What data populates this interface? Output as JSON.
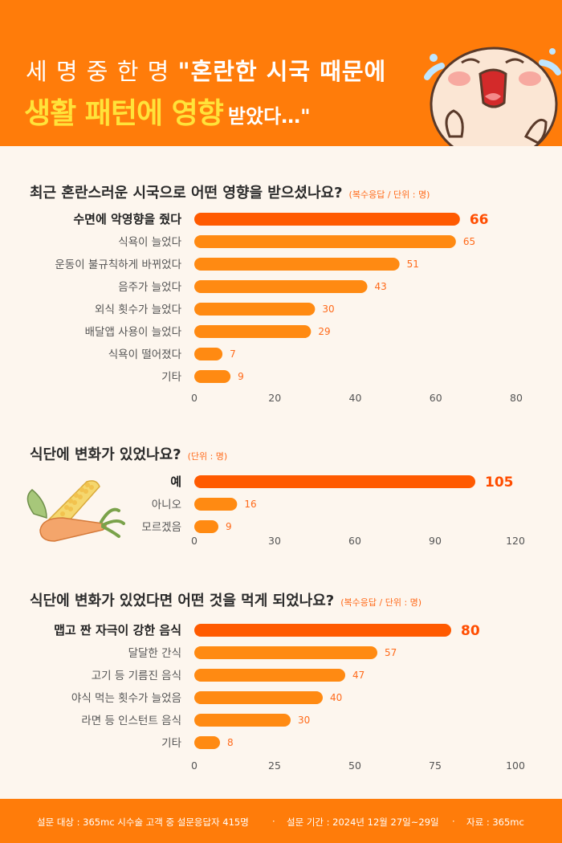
{
  "header": {
    "line1_prefix": "세 명 중 한 명",
    "line1_quote": "\"혼란한 시국 때문에",
    "line2_highlight": "생활 패턴에 영향",
    "line2_tail": "받았다…\""
  },
  "colors": {
    "accent": "#ff7c0a",
    "highlight_bar": "#ff5a00",
    "bar": "#ff8a12",
    "value_text": "#ff6a1a",
    "headline_highlight": "#ffe33a"
  },
  "chart_data": [
    {
      "type": "bar",
      "orientation": "horizontal",
      "title": "최근 혼란스러운 시국으로 어떤 영향을 받으셨나요?",
      "note": "(복수응답 / 단위 : 명)",
      "categories": [
        "수면에 악영향을 줬다",
        "식욕이 늘었다",
        "운동이 불규칙하게 바뀌었다",
        "음주가 늘었다",
        "외식 횟수가 늘었다",
        "배달앱 사용이 늘었다",
        "식욕이 떨어졌다",
        "기타"
      ],
      "values": [
        66,
        65,
        51,
        43,
        30,
        29,
        7,
        9
      ],
      "value_labels": [
        "66",
        "65",
        "51",
        "43",
        "30",
        "29",
        "7",
        "9"
      ],
      "xlim": [
        0,
        80
      ],
      "ticks": [
        "0",
        "20",
        "40",
        "60",
        "80"
      ],
      "highlight_index": 0
    },
    {
      "type": "bar",
      "orientation": "horizontal",
      "title": "식단에 변화가 있었나요?",
      "note": "(단위 : 명)",
      "categories": [
        "예",
        "아니오",
        "모르겠음"
      ],
      "values": [
        105,
        16,
        9
      ],
      "value_labels": [
        "105",
        "16",
        "9"
      ],
      "xlim": [
        0,
        120
      ],
      "ticks": [
        "0",
        "30",
        "60",
        "90",
        "120"
      ],
      "highlight_index": 0
    },
    {
      "type": "bar",
      "orientation": "horizontal",
      "title": "식단에 변화가 있었다면 어떤 것을 먹게 되었나요?",
      "note": "(복수응답 / 단위 : 명)",
      "categories": [
        "맵고 짠 자극이 강한 음식",
        "달달한 간식",
        "고기 등 기름진 음식",
        "야식 먹는 횟수가 늘었음",
        "라면 등 인스턴트 음식",
        "기타"
      ],
      "values": [
        80,
        57,
        47,
        40,
        30,
        8
      ],
      "value_labels": [
        "80",
        "57",
        "47",
        "40",
        "30",
        "8"
      ],
      "xlim": [
        0,
        100
      ],
      "ticks": [
        "0",
        "25",
        "50",
        "75",
        "100"
      ],
      "highlight_index": 0
    }
  ],
  "footer": {
    "target": "설문 대상 : 365mc 시수술 고객 중 설문응답자 415명",
    "period": "설문 기간 : 2024년 12월 27일~29일",
    "source": "자료 : 365mc",
    "sep": "·"
  }
}
